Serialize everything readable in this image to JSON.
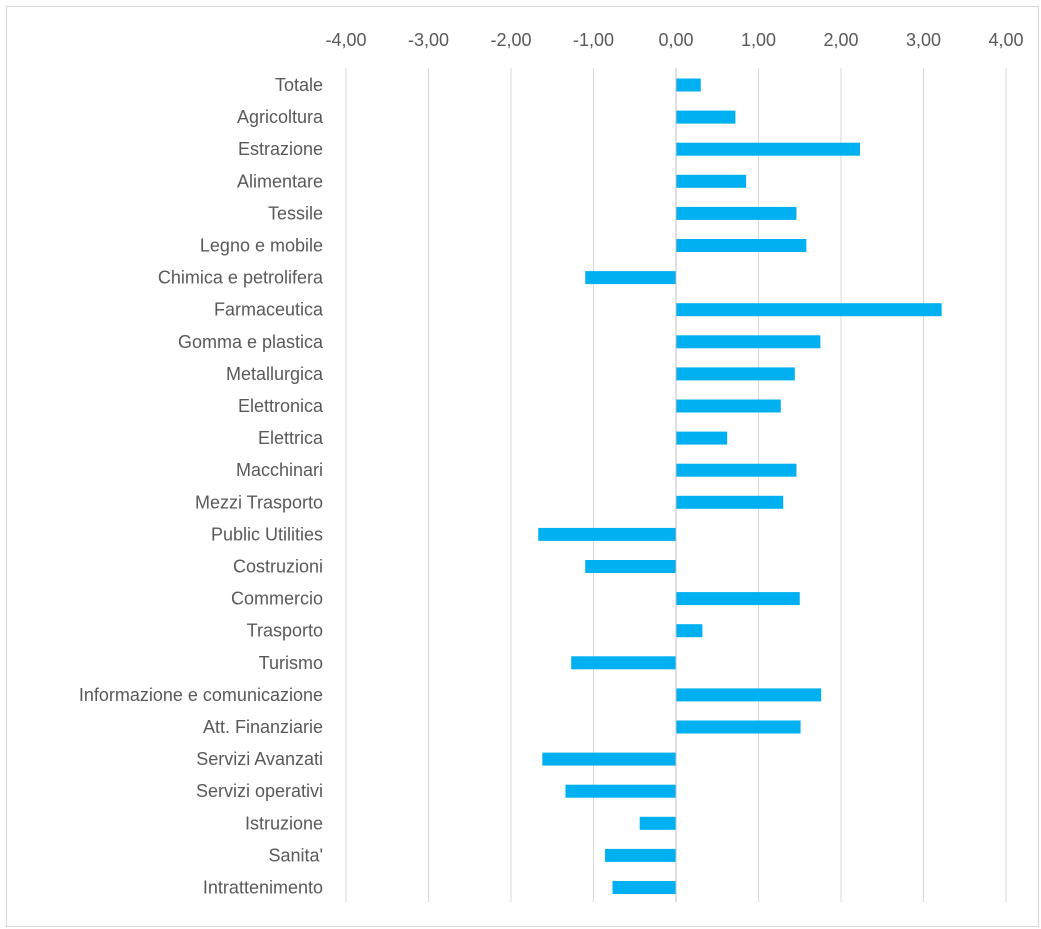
{
  "chart_data": {
    "type": "bar",
    "orientation": "horizontal",
    "title": "",
    "xlabel": "",
    "ylabel": "",
    "xlim": [
      -4,
      4
    ],
    "x_ticks": [
      -4,
      -3,
      -2,
      -1,
      0,
      1,
      2,
      3,
      4
    ],
    "x_tick_labels": [
      "-4,00",
      "-3,00",
      "-2,00",
      "-1,00",
      "0,00",
      "1,00",
      "2,00",
      "3,00",
      "4,00"
    ],
    "x_axis_position": "top",
    "grid": true,
    "legend": "none",
    "bar_color": "#00b0f0",
    "categories": [
      "Totale",
      "Agricoltura",
      "Estrazione",
      "Alimentare",
      "Tessile",
      "Legno e mobile",
      "Chimica e petrolifera",
      "Farmaceutica",
      "Gomma e plastica",
      "Metallurgica",
      "Elettronica",
      "Elettrica",
      "Macchinari",
      "Mezzi Trasporto",
      "Public Utilities",
      "Costruzioni",
      "Commercio",
      "Trasporto",
      "Turismo",
      "Informazione e comunicazione",
      "Att. Finanziarie",
      "Servizi Avanzati",
      "Servizi operativi",
      "Istruzione",
      "Sanita'",
      "Intrattenimento"
    ],
    "values": [
      0.3,
      0.72,
      2.23,
      0.85,
      1.46,
      1.58,
      -1.1,
      3.22,
      1.75,
      1.44,
      1.27,
      0.62,
      1.46,
      1.3,
      -1.67,
      -1.1,
      1.5,
      0.32,
      -1.27,
      1.76,
      1.51,
      -1.62,
      -1.34,
      -0.44,
      -0.86,
      -0.77
    ]
  }
}
